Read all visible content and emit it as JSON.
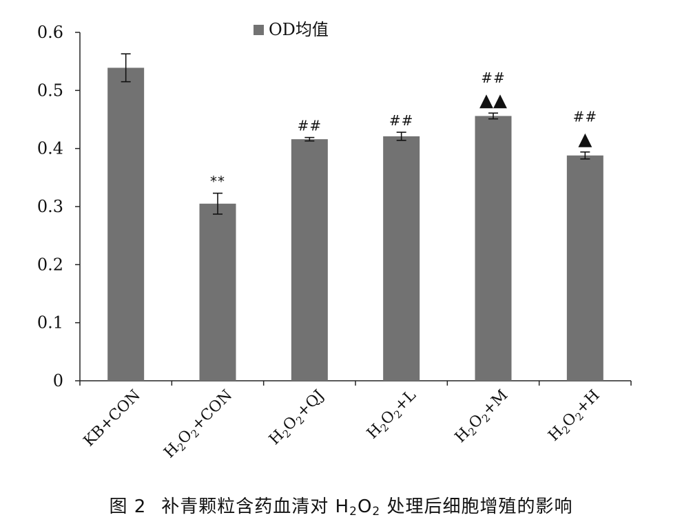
{
  "colors": {
    "bar": "#727272",
    "axis": "#222222",
    "text": "#111111"
  },
  "caption": {
    "fig_label": "图 2",
    "text_before": "补青颗粒含药血清对 H",
    "sub1": "2",
    "mid": "O",
    "sub2": "2",
    "text_after": " 处理后细胞增殖的影响"
  },
  "chart_data": {
    "type": "bar",
    "categories": [
      "KB+CON",
      "H2O2+CON",
      "H2O2+QJ",
      "H2O2+L",
      "H2O2+M",
      "H2O2+H"
    ],
    "category_labels": [
      {
        "parts": [
          {
            "t": "KB+CON"
          }
        ]
      },
      {
        "parts": [
          {
            "t": "H"
          },
          {
            "t": "2",
            "sub": true
          },
          {
            "t": "O"
          },
          {
            "t": "2",
            "sub": true
          },
          {
            "t": "+CON"
          }
        ]
      },
      {
        "parts": [
          {
            "t": "H"
          },
          {
            "t": "2",
            "sub": true
          },
          {
            "t": "O"
          },
          {
            "t": "2",
            "sub": true
          },
          {
            "t": "+QJ"
          }
        ]
      },
      {
        "parts": [
          {
            "t": "H"
          },
          {
            "t": "2",
            "sub": true
          },
          {
            "t": "O"
          },
          {
            "t": "2",
            "sub": true
          },
          {
            "t": "+L"
          }
        ]
      },
      {
        "parts": [
          {
            "t": "H"
          },
          {
            "t": "2",
            "sub": true
          },
          {
            "t": "O"
          },
          {
            "t": "2",
            "sub": true
          },
          {
            "t": "+M"
          }
        ]
      },
      {
        "parts": [
          {
            "t": "H"
          },
          {
            "t": "2",
            "sub": true
          },
          {
            "t": "O"
          },
          {
            "t": "2",
            "sub": true
          },
          {
            "t": "+H"
          }
        ]
      }
    ],
    "series": [
      {
        "name": "OD均值",
        "values": [
          0.539,
          0.305,
          0.416,
          0.421,
          0.456,
          0.388
        ],
        "errors": [
          0.024,
          0.018,
          0.003,
          0.007,
          0.005,
          0.006
        ]
      }
    ],
    "annotations": [
      {
        "index": 1,
        "lines": [
          "**"
        ]
      },
      {
        "index": 2,
        "lines": [
          "##"
        ]
      },
      {
        "index": 3,
        "lines": [
          "##"
        ]
      },
      {
        "index": 4,
        "lines": [
          "##",
          "▲▲"
        ]
      },
      {
        "index": 5,
        "lines": [
          "##",
          "▲"
        ]
      }
    ],
    "ylim": [
      0,
      0.6
    ],
    "yticks": [
      0,
      0.1,
      0.2,
      0.3,
      0.4,
      0.5,
      0.6
    ],
    "ytick_labels": [
      "0",
      "0.1",
      "0.2",
      "0.3",
      "0.4",
      "0.5",
      "0.6"
    ],
    "grid": false,
    "legend_position": "top-center"
  }
}
